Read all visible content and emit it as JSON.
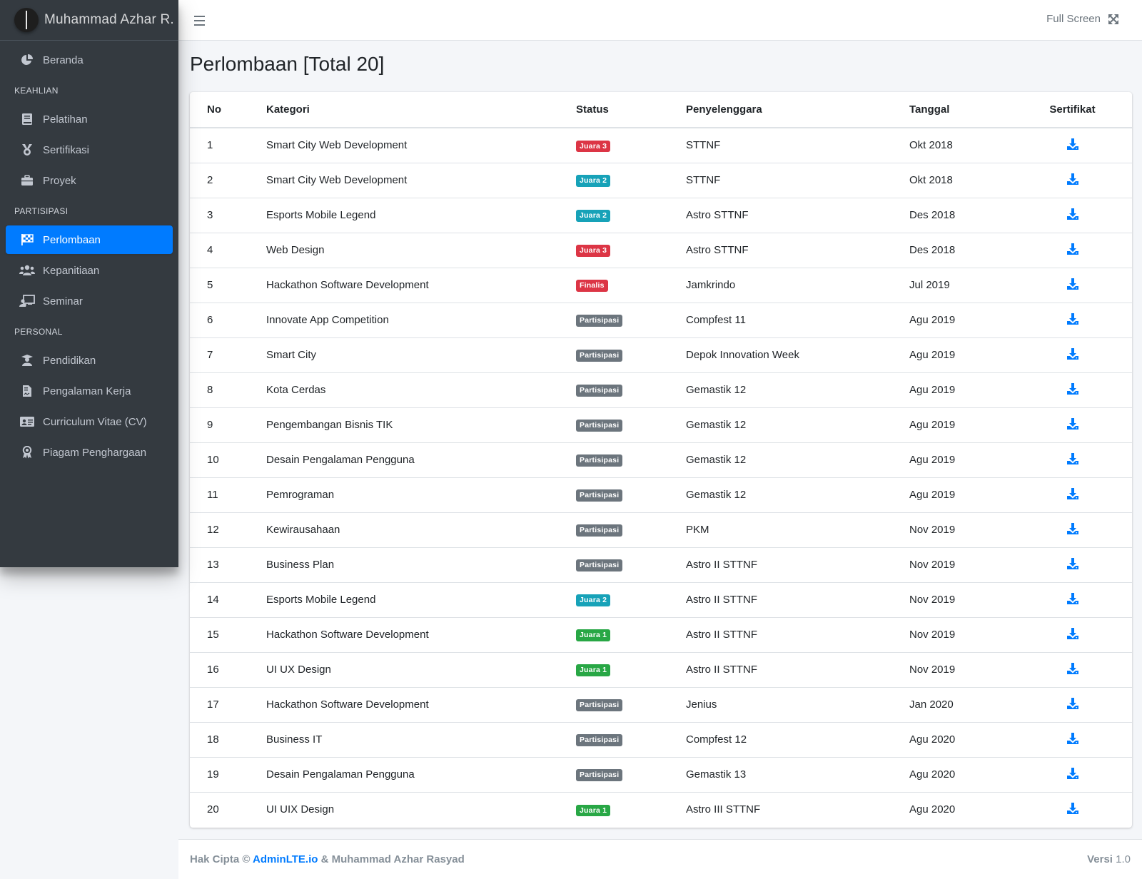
{
  "brand": {
    "name": "Muhammad Azhar R."
  },
  "sidebar": {
    "items": [
      {
        "type": "item",
        "label": "Beranda",
        "icon": "chart-pie-icon"
      },
      {
        "type": "header",
        "label": "KEAHLIAN"
      },
      {
        "type": "item",
        "label": "Pelatihan",
        "icon": "book-icon"
      },
      {
        "type": "item",
        "label": "Sertifikasi",
        "icon": "medal-icon"
      },
      {
        "type": "item",
        "label": "Proyek",
        "icon": "briefcase-icon"
      },
      {
        "type": "header",
        "label": "PARTISIPASI"
      },
      {
        "type": "item",
        "label": "Perlombaan",
        "icon": "flag-checkered-icon",
        "active": true
      },
      {
        "type": "item",
        "label": "Kepanitiaan",
        "icon": "users-icon"
      },
      {
        "type": "item",
        "label": "Seminar",
        "icon": "chalkboard-teacher-icon"
      },
      {
        "type": "header",
        "label": "PERSONAL"
      },
      {
        "type": "item",
        "label": "Pendidikan",
        "icon": "graduate-icon"
      },
      {
        "type": "item",
        "label": "Pengalaman Kerja",
        "icon": "file-contract-icon"
      },
      {
        "type": "item",
        "label": "Curriculum Vitae (CV)",
        "icon": "id-card-icon"
      },
      {
        "type": "item",
        "label": "Piagam Penghargaan",
        "icon": "award-icon"
      }
    ]
  },
  "topbar": {
    "fullscreen_label": "Full Screen",
    "menu_icon": "bars-icon",
    "fullscreen_icon": "expand-arrows-icon"
  },
  "page": {
    "title": "Perlombaan [Total 20]"
  },
  "table": {
    "headers": {
      "no": "No",
      "kategori": "Kategori",
      "status": "Status",
      "penyelenggara": "Penyelenggara",
      "tanggal": "Tanggal",
      "sertifikat": "Sertifikat"
    },
    "rows": [
      {
        "no": "1",
        "kategori": "Smart City Web Development",
        "status": "Juara 3",
        "status_type": "danger",
        "penyelenggara": "STTNF",
        "tanggal": "Okt 2018"
      },
      {
        "no": "2",
        "kategori": "Smart City Web Development",
        "status": "Juara 2",
        "status_type": "info",
        "penyelenggara": "STTNF",
        "tanggal": "Okt 2018"
      },
      {
        "no": "3",
        "kategori": "Esports Mobile Legend",
        "status": "Juara 2",
        "status_type": "info",
        "penyelenggara": "Astro STTNF",
        "tanggal": "Des 2018"
      },
      {
        "no": "4",
        "kategori": "Web Design",
        "status": "Juara 3",
        "status_type": "danger",
        "penyelenggara": "Astro STTNF",
        "tanggal": "Des 2018"
      },
      {
        "no": "5",
        "kategori": "Hackathon Software Development",
        "status": "Finalis",
        "status_type": "danger",
        "penyelenggara": "Jamkrindo",
        "tanggal": "Jul 2019"
      },
      {
        "no": "6",
        "kategori": "Innovate App Competition",
        "status": "Partisipasi",
        "status_type": "secondary",
        "penyelenggara": "Compfest 11",
        "tanggal": "Agu 2019"
      },
      {
        "no": "7",
        "kategori": "Smart City",
        "status": "Partisipasi",
        "status_type": "secondary",
        "penyelenggara": "Depok Innovation Week",
        "tanggal": "Agu 2019"
      },
      {
        "no": "8",
        "kategori": "Kota Cerdas",
        "status": "Partisipasi",
        "status_type": "secondary",
        "penyelenggara": "Gemastik 12",
        "tanggal": "Agu 2019"
      },
      {
        "no": "9",
        "kategori": "Pengembangan Bisnis TIK",
        "status": "Partisipasi",
        "status_type": "secondary",
        "penyelenggara": "Gemastik 12",
        "tanggal": "Agu 2019"
      },
      {
        "no": "10",
        "kategori": "Desain Pengalaman Pengguna",
        "status": "Partisipasi",
        "status_type": "secondary",
        "penyelenggara": "Gemastik 12",
        "tanggal": "Agu 2019"
      },
      {
        "no": "11",
        "kategori": "Pemrograman",
        "status": "Partisipasi",
        "status_type": "secondary",
        "penyelenggara": "Gemastik 12",
        "tanggal": "Agu 2019"
      },
      {
        "no": "12",
        "kategori": "Kewirausahaan",
        "status": "Partisipasi",
        "status_type": "secondary",
        "penyelenggara": "PKM",
        "tanggal": "Nov 2019"
      },
      {
        "no": "13",
        "kategori": "Business Plan",
        "status": "Partisipasi",
        "status_type": "secondary",
        "penyelenggara": "Astro II STTNF",
        "tanggal": "Nov 2019"
      },
      {
        "no": "14",
        "kategori": "Esports Mobile Legend",
        "status": "Juara 2",
        "status_type": "info",
        "penyelenggara": "Astro II STTNF",
        "tanggal": "Nov 2019"
      },
      {
        "no": "15",
        "kategori": "Hackathon Software Development",
        "status": "Juara 1",
        "status_type": "success",
        "penyelenggara": "Astro II STTNF",
        "tanggal": "Nov 2019"
      },
      {
        "no": "16",
        "kategori": "UI UX Design",
        "status": "Juara 1",
        "status_type": "success",
        "penyelenggara": "Astro II STTNF",
        "tanggal": "Nov 2019"
      },
      {
        "no": "17",
        "kategori": "Hackathon Software Development",
        "status": "Partisipasi",
        "status_type": "secondary",
        "penyelenggara": "Jenius",
        "tanggal": "Jan 2020"
      },
      {
        "no": "18",
        "kategori": "Business IT",
        "status": "Partisipasi",
        "status_type": "secondary",
        "penyelenggara": "Compfest 12",
        "tanggal": "Agu 2020"
      },
      {
        "no": "19",
        "kategori": "Desain Pengalaman Pengguna",
        "status": "Partisipasi",
        "status_type": "secondary",
        "penyelenggara": "Gemastik 13",
        "tanggal": "Agu 2020"
      },
      {
        "no": "20",
        "kategori": "UI UIX Design",
        "status": "Juara 1",
        "status_type": "success",
        "penyelenggara": "Astro III STTNF",
        "tanggal": "Agu 2020"
      }
    ],
    "download_icon": "download-icon"
  },
  "footer": {
    "copyright_prefix": "Hak Cipta ©",
    "link_text": "AdminLTE.io",
    "copyright_suffix": "& Muhammad Azhar Rasyad",
    "version_label": "Versi",
    "version_value": "1.0"
  },
  "colors": {
    "sidebar_bg": "#343a40",
    "primary": "#007bff",
    "danger": "#dc3545",
    "info": "#17a2b8",
    "success": "#28a745",
    "secondary": "#6c757d"
  }
}
